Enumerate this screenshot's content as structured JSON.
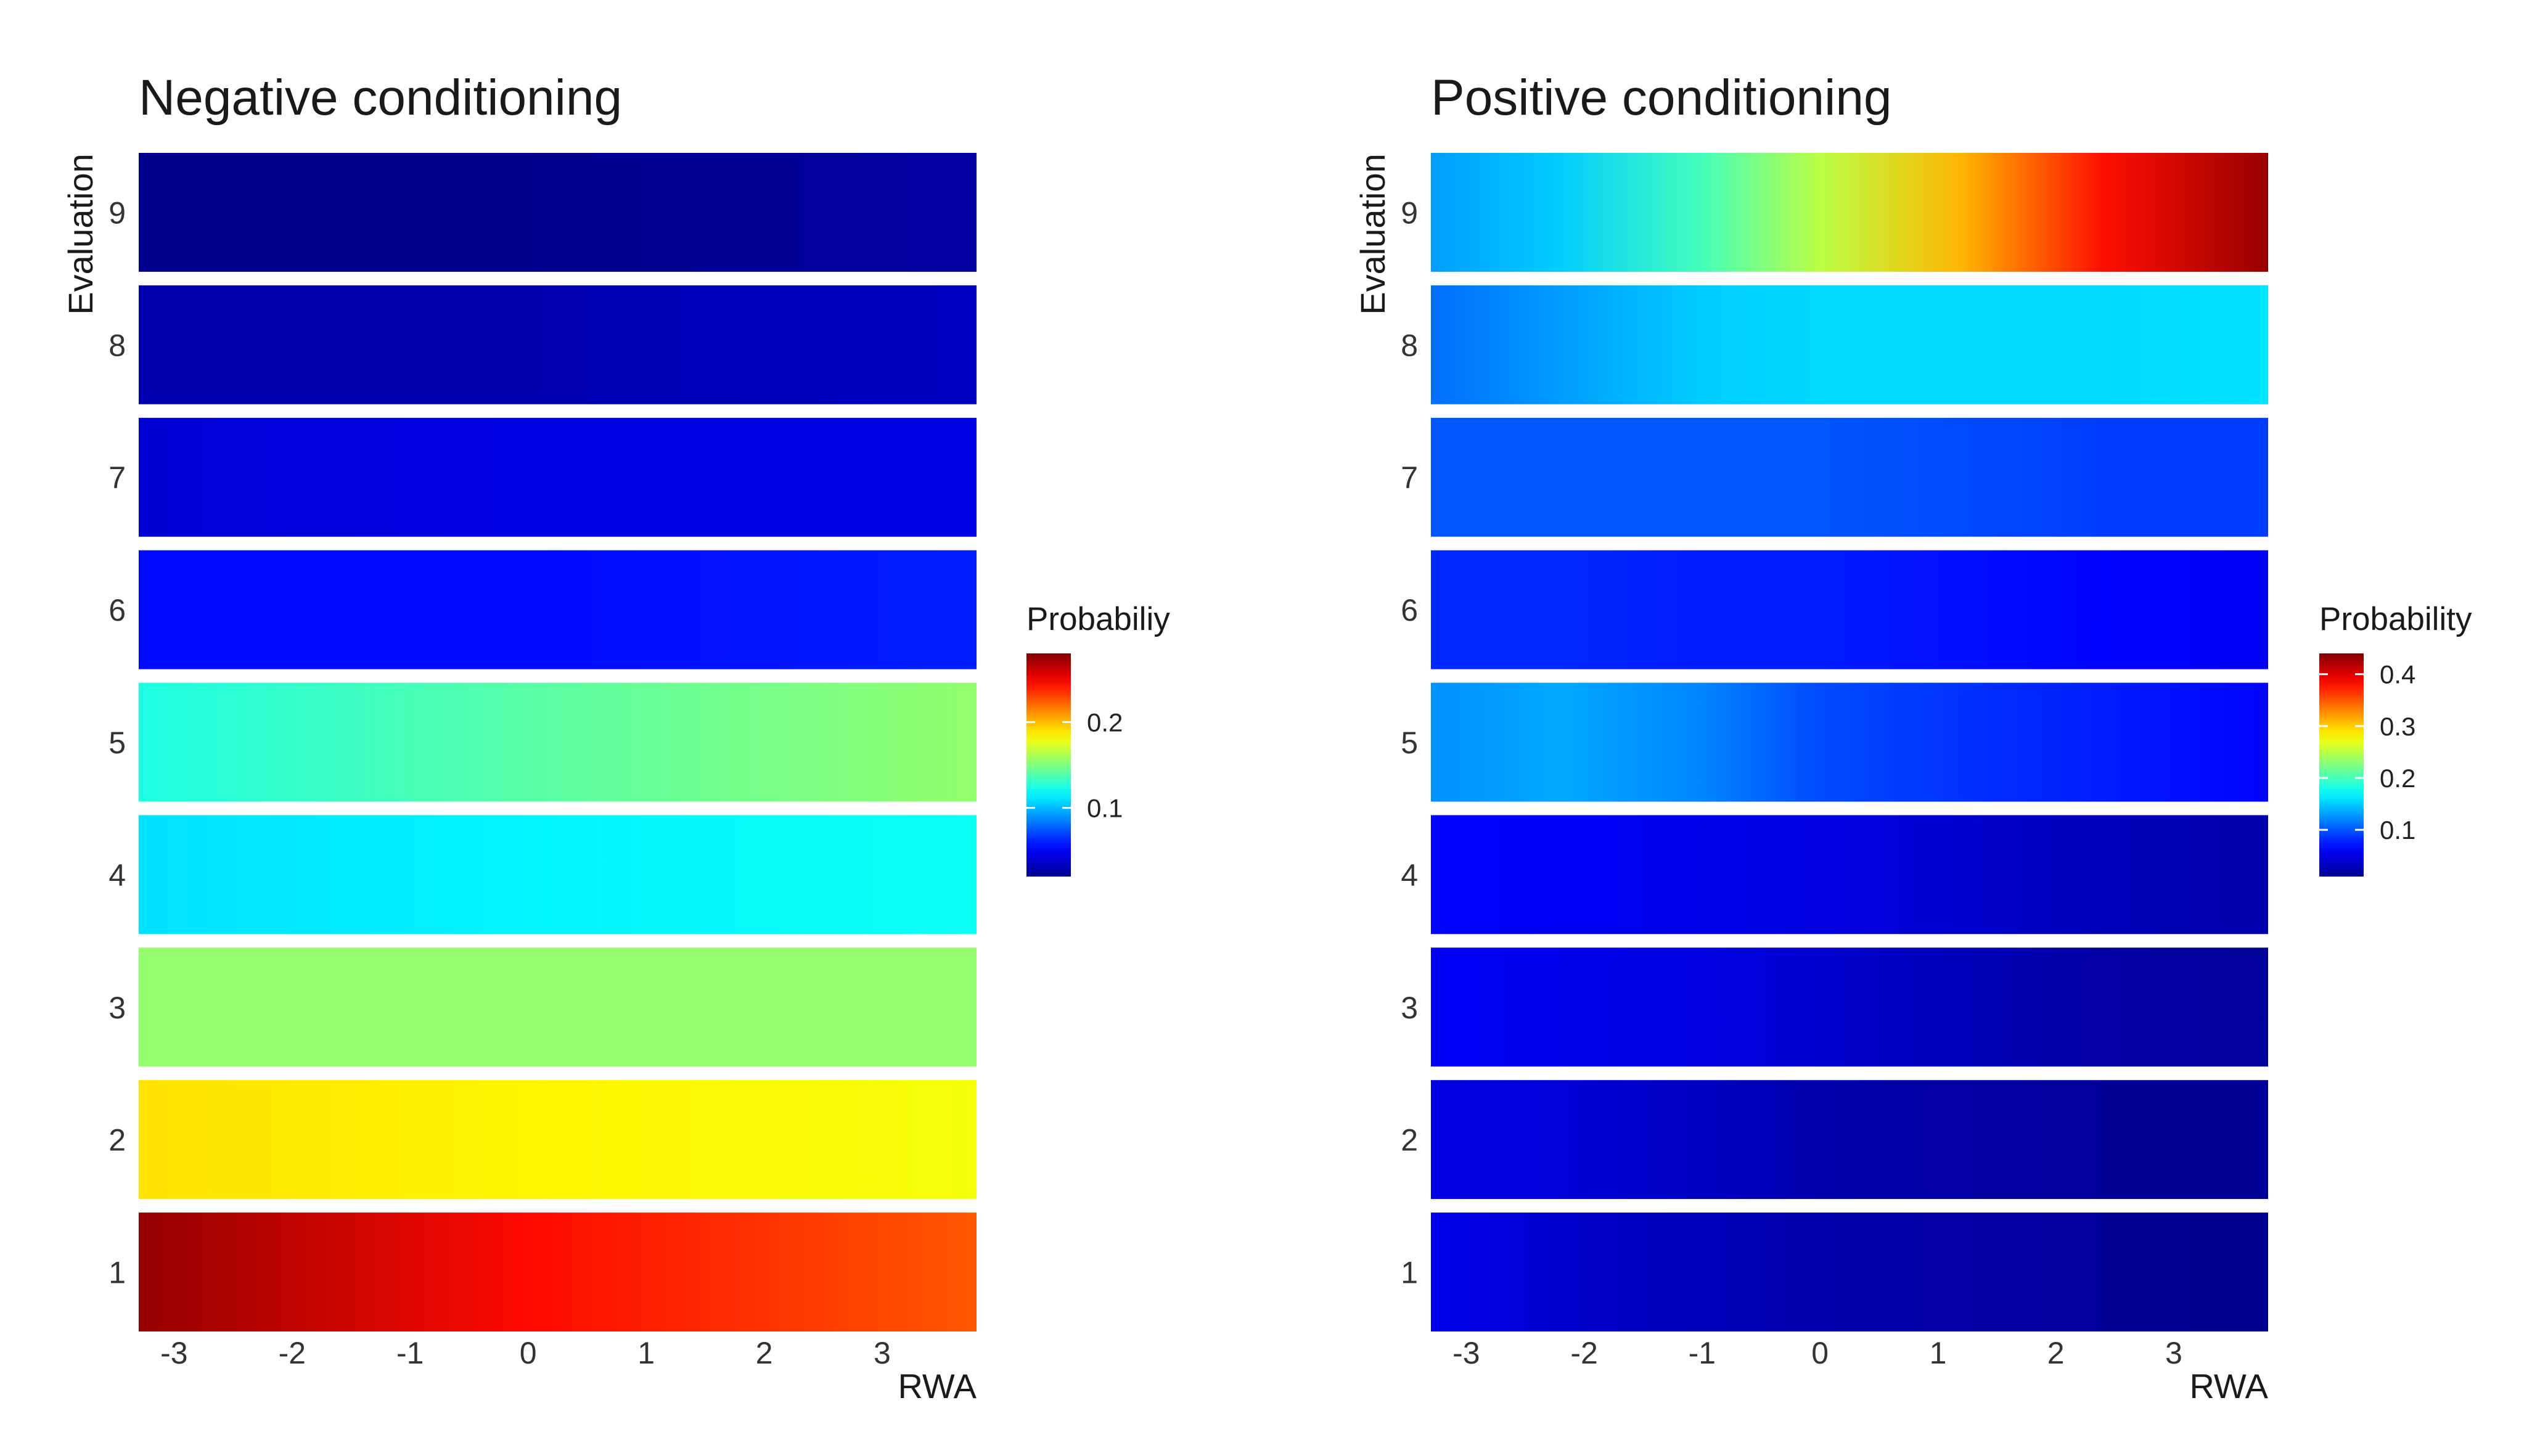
{
  "chart_data": [
    {
      "type": "heatmap",
      "title": "Negative conditioning",
      "xlabel": "RWA",
      "ylabel": "Evaluation",
      "x_ticks": [
        "-3",
        "-2",
        "-1",
        "0",
        "1",
        "2",
        "3"
      ],
      "y_categories": [
        "1",
        "2",
        "3",
        "4",
        "5",
        "6",
        "7",
        "8",
        "9"
      ],
      "x_samples": [
        -3.3,
        0,
        3.8
      ],
      "rows": [
        {
          "evaluation": "1",
          "probability": [
            0.275,
            0.245,
            0.225
          ]
        },
        {
          "evaluation": "2",
          "probability": [
            0.19,
            0.185,
            0.18
          ]
        },
        {
          "evaluation": "3",
          "probability": [
            0.155,
            0.155,
            0.155
          ]
        },
        {
          "evaluation": "4",
          "probability": [
            0.11,
            0.115,
            0.12
          ]
        },
        {
          "evaluation": "5",
          "probability": [
            0.125,
            0.14,
            0.155
          ]
        },
        {
          "evaluation": "6",
          "probability": [
            0.055,
            0.055,
            0.06
          ]
        },
        {
          "evaluation": "7",
          "probability": [
            0.04,
            0.045,
            0.045
          ]
        },
        {
          "evaluation": "8",
          "probability": [
            0.03,
            0.03,
            0.035
          ]
        },
        {
          "evaluation": "9",
          "probability": [
            0.02,
            0.02,
            0.025
          ]
        }
      ],
      "legend": {
        "title": "Probabiliy",
        "min": 0.02,
        "max": 0.28,
        "ticks": [
          "0.1",
          "0.2"
        ]
      },
      "grid": false
    },
    {
      "type": "heatmap",
      "title": "Positive conditioning",
      "xlabel": "RWA",
      "ylabel": "Evaluation",
      "x_ticks": [
        "-3",
        "-2",
        "-1",
        "0",
        "1",
        "2",
        "3"
      ],
      "y_categories": [
        "1",
        "2",
        "3",
        "4",
        "5",
        "6",
        "7",
        "8",
        "9"
      ],
      "x_samples": [
        -3.3,
        -2.2,
        -1.0,
        0,
        1.2,
        2.4,
        3.8
      ],
      "rows": [
        {
          "evaluation": "1",
          "probability": [
            0.055,
            0.04,
            0.03,
            0.025,
            0.02,
            0.015,
            0.01
          ]
        },
        {
          "evaluation": "2",
          "probability": [
            0.05,
            0.045,
            0.035,
            0.025,
            0.02,
            0.015,
            0.015
          ]
        },
        {
          "evaluation": "3",
          "probability": [
            0.06,
            0.055,
            0.05,
            0.04,
            0.03,
            0.02,
            0.015
          ]
        },
        {
          "evaluation": "4",
          "probability": [
            0.065,
            0.06,
            0.055,
            0.05,
            0.04,
            0.03,
            0.025
          ]
        },
        {
          "evaluation": "5",
          "probability": [
            0.125,
            0.135,
            0.12,
            0.095,
            0.085,
            0.075,
            0.065
          ]
        },
        {
          "evaluation": "6",
          "probability": [
            0.08,
            0.08,
            0.075,
            0.075,
            0.07,
            0.065,
            0.06
          ]
        },
        {
          "evaluation": "7",
          "probability": [
            0.1,
            0.1,
            0.1,
            0.1,
            0.095,
            0.09,
            0.09
          ]
        },
        {
          "evaluation": "8",
          "probability": [
            0.11,
            0.13,
            0.15,
            0.155,
            0.155,
            0.155,
            0.16
          ]
        },
        {
          "evaluation": "9",
          "probability": [
            0.13,
            0.15,
            0.2,
            0.25,
            0.31,
            0.38,
            0.43
          ]
        }
      ],
      "legend": {
        "title": "Probability",
        "min": 0.01,
        "max": 0.44,
        "ticks": [
          "0.1",
          "0.2",
          "0.3",
          "0.4"
        ]
      },
      "grid": false
    }
  ]
}
